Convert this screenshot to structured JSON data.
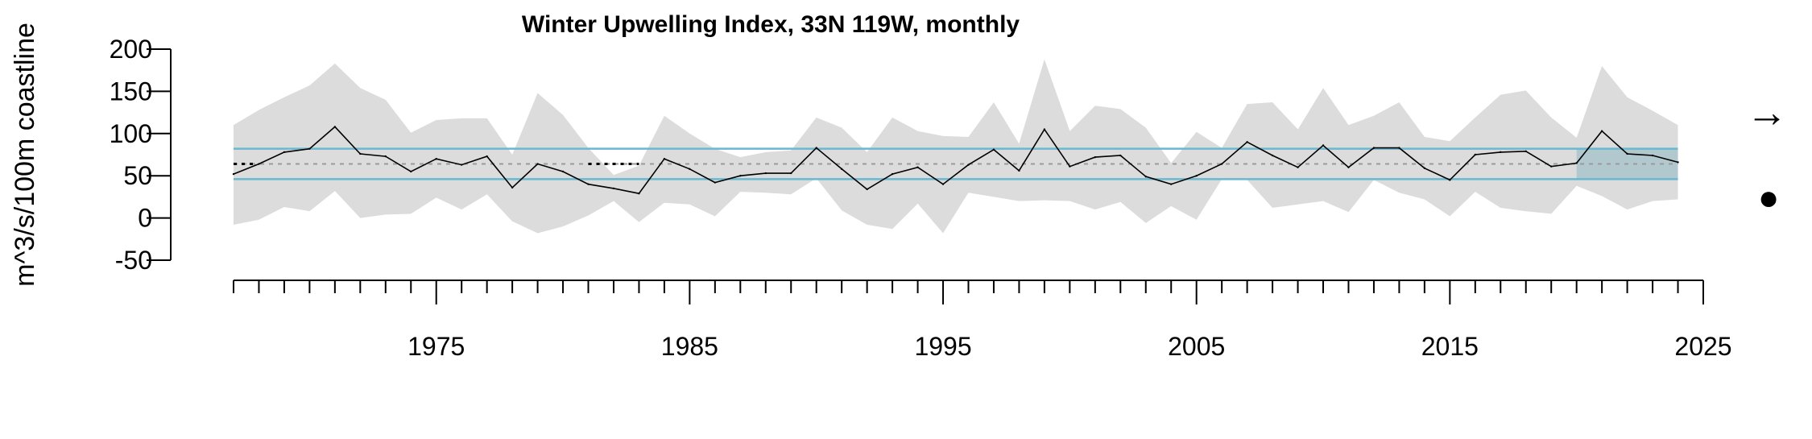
{
  "chart_data": {
    "type": "line",
    "title": "Winter Upwelling Index, 33N 119W, monthly",
    "xlabel": "",
    "ylabel": "m^3/s/100m coastline",
    "xlim": [
      1967,
      2025
    ],
    "ylim": [
      -50,
      200
    ],
    "y_ticks": [
      200,
      150,
      100,
      50,
      0,
      -50
    ],
    "x_tick_labels": [
      1975,
      1985,
      1995,
      2005,
      2015,
      2025
    ],
    "x_minor_tick_start": 1967,
    "x_minor_tick_end": 2025,
    "grid": false,
    "legend": "none",
    "mean": 64,
    "sd_upper": 82,
    "sd_lower": 46,
    "recent_window": [
      2020,
      2024
    ],
    "trend_symbol": "→",
    "status_symbol": "●",
    "series": [
      {
        "x": [
          1967,
          1968,
          1969,
          1970,
          1971,
          1972,
          1973,
          1974,
          1975,
          1976,
          1977,
          1978,
          1979,
          1980,
          1981,
          1982,
          1983,
          1984,
          1985,
          1986,
          1987,
          1988,
          1989,
          1990,
          1991,
          1992,
          1993,
          1994,
          1995,
          1996,
          1997,
          1998,
          1999,
          2000,
          2001,
          2002,
          2003,
          2004,
          2005,
          2006,
          2007,
          2008,
          2009,
          2010,
          2011,
          2012,
          2013,
          2014,
          2015,
          2016,
          2017,
          2018,
          2019,
          2020,
          2021,
          2022,
          2023,
          2024
        ],
        "values": [
          52,
          64,
          78,
          82,
          108,
          76,
          73,
          55,
          70,
          63,
          73,
          36,
          64,
          55,
          40,
          35,
          29,
          70,
          58,
          42,
          50,
          53,
          53,
          83,
          58,
          34,
          52,
          60,
          40,
          63,
          81,
          56,
          105,
          61,
          72,
          74,
          49,
          40,
          50,
          64,
          90,
          74,
          60,
          86,
          60,
          83,
          83,
          59,
          45,
          75,
          78,
          79,
          61,
          65,
          103,
          76,
          74,
          66
        ]
      }
    ],
    "band_upper": [
      110,
      128,
      143,
      157,
      183,
      154,
      140,
      101,
      116,
      118,
      118,
      75,
      148,
      122,
      83,
      51,
      62,
      121,
      100,
      82,
      72,
      78,
      80,
      119,
      107,
      78,
      119,
      103,
      97,
      96,
      137,
      88,
      188,
      103,
      133,
      129,
      107,
      65,
      102,
      83,
      135,
      137,
      105,
      154,
      110,
      121,
      137,
      96,
      91,
      119,
      146,
      151,
      119,
      95,
      180,
      143,
      127,
      110
    ],
    "band_lower": [
      -8,
      -2,
      13,
      8,
      32,
      0,
      4,
      5,
      24,
      10,
      28,
      -4,
      -18,
      -10,
      3,
      20,
      -5,
      18,
      16,
      2,
      31,
      30,
      28,
      47,
      9,
      -8,
      -13,
      17,
      -18,
      30,
      25,
      20,
      21,
      20,
      10,
      19,
      -6,
      14,
      -2,
      46,
      45,
      12,
      16,
      20,
      7,
      45,
      30,
      22,
      2,
      31,
      12,
      8,
      5,
      38,
      26,
      10,
      20,
      22
    ]
  }
}
